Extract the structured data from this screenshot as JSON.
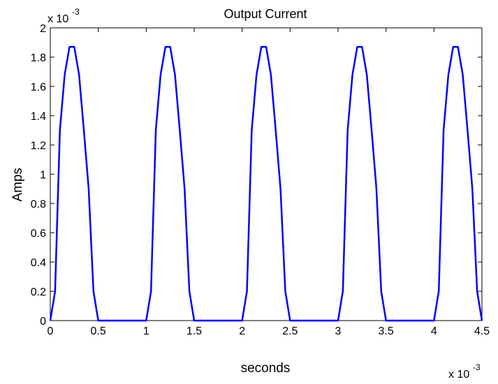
{
  "chart_data": {
    "type": "line",
    "title": "Output Current",
    "xlabel": "seconds",
    "ylabel": "Amps",
    "x_multiplier": {
      "base": "x 10",
      "exponent": "-3"
    },
    "y_multiplier": {
      "base": "x 10",
      "exponent": "-3"
    },
    "xlim": [
      0,
      4.5
    ],
    "ylim": [
      0,
      2
    ],
    "x_ticks": [
      "0",
      "0.5",
      "1",
      "1.5",
      "2",
      "2.5",
      "3",
      "3.5",
      "4",
      "4.5"
    ],
    "y_ticks": [
      "0",
      "0.2",
      "0.4",
      "0.6",
      "0.8",
      "1",
      "1.2",
      "1.4",
      "1.6",
      "1.8",
      "2"
    ],
    "grid": false,
    "series": [
      {
        "color": "#0000ff",
        "x": [
          0,
          0.05,
          0.1,
          0.15,
          0.2,
          0.25,
          0.3,
          0.35,
          0.4,
          0.45,
          0.5,
          1.0,
          1.05,
          1.1,
          1.15,
          1.2,
          1.25,
          1.3,
          1.35,
          1.4,
          1.45,
          1.5,
          2.0,
          2.05,
          2.1,
          2.15,
          2.2,
          2.25,
          2.3,
          2.35,
          2.4,
          2.45,
          2.5,
          3.0,
          3.05,
          3.1,
          3.15,
          3.2,
          3.25,
          3.3,
          3.35,
          3.4,
          3.45,
          3.5,
          4.0,
          4.05,
          4.1,
          4.15,
          4.2,
          4.25,
          4.3,
          4.35,
          4.4,
          4.45,
          4.5
        ],
        "y": [
          0,
          0.2,
          1.3,
          1.68,
          1.87,
          1.87,
          1.68,
          1.3,
          0.9,
          0.2,
          0,
          0,
          0.2,
          1.3,
          1.68,
          1.87,
          1.87,
          1.68,
          1.3,
          0.9,
          0.2,
          0,
          0,
          0.2,
          1.3,
          1.68,
          1.87,
          1.87,
          1.68,
          1.3,
          0.9,
          0.2,
          0,
          0,
          0.2,
          1.3,
          1.68,
          1.87,
          1.87,
          1.68,
          1.3,
          0.9,
          0.2,
          0,
          0,
          0.2,
          1.3,
          1.68,
          1.87,
          1.87,
          1.68,
          1.3,
          0.9,
          0.2,
          0
        ]
      }
    ]
  }
}
